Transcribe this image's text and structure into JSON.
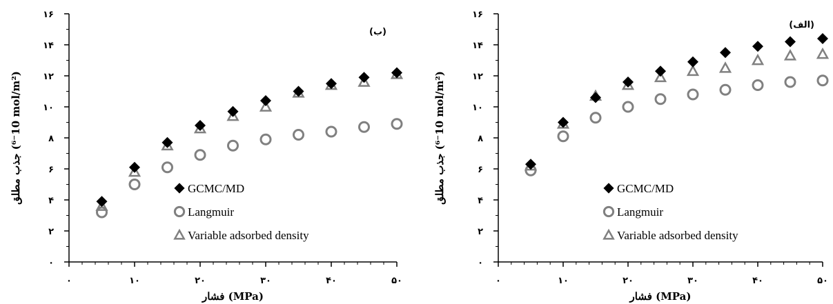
{
  "chart_data": [
    {
      "type": "scatter",
      "panel_label": "(ب)",
      "xlabel": "فشار (MPa)",
      "ylabel": "جذب مطلق (10⁻⁶ mol/m²)",
      "xlim": [
        0,
        50
      ],
      "ylim": [
        0,
        16
      ],
      "x_ticks": [
        0,
        10,
        20,
        30,
        40,
        50
      ],
      "x_tick_labels": [
        "۰",
        "۱۰",
        "۲۰",
        "۳۰",
        "۴۰",
        "۵۰"
      ],
      "y_ticks": [
        0,
        2,
        4,
        6,
        8,
        10,
        12,
        14,
        16
      ],
      "y_tick_labels": [
        "۰",
        "۲",
        "۴",
        "۶",
        "۸",
        "۱۰",
        "۱۲",
        "۱۴",
        "۱۶"
      ],
      "legend_position": "bottom-right",
      "x": [
        5,
        10,
        15,
        20,
        25,
        30,
        35,
        40,
        45,
        50
      ],
      "series": [
        {
          "name": "GCMC/MD",
          "marker": "diamond",
          "color": "#000000",
          "values": [
            3.9,
            6.1,
            7.7,
            8.8,
            9.7,
            10.4,
            11.0,
            11.5,
            11.9,
            12.2
          ]
        },
        {
          "name": "Langmuir",
          "marker": "circle",
          "color": "#808080",
          "values": [
            3.2,
            5.0,
            6.1,
            6.9,
            7.5,
            7.9,
            8.2,
            8.4,
            8.7,
            8.9
          ]
        },
        {
          "name": "Variable adsorbed density",
          "marker": "triangle",
          "color": "#808080",
          "values": [
            3.6,
            5.8,
            7.5,
            8.6,
            9.4,
            10.0,
            10.9,
            11.4,
            11.6,
            12.1
          ]
        }
      ]
    },
    {
      "type": "scatter",
      "panel_label": "(الف)",
      "xlabel": "فشار (MPa)",
      "ylabel": "جذب مطلق (10⁻⁶ mol/m²)",
      "xlim": [
        0,
        50
      ],
      "ylim": [
        0,
        16
      ],
      "x_ticks": [
        0,
        10,
        20,
        30,
        40,
        50
      ],
      "x_tick_labels": [
        "۰",
        "۱۰",
        "۲۰",
        "۳۰",
        "۴۰",
        "۵۰"
      ],
      "y_ticks": [
        0,
        2,
        4,
        6,
        8,
        10,
        12,
        14,
        16
      ],
      "y_tick_labels": [
        "۰",
        "۲",
        "۴",
        "۶",
        "۸",
        "۱۰",
        "۱۲",
        "۱۴",
        "۱۶"
      ],
      "legend_position": "bottom-right",
      "x": [
        5,
        10,
        15,
        20,
        25,
        30,
        35,
        40,
        45,
        50
      ],
      "series": [
        {
          "name": "GCMC/MD",
          "marker": "diamond",
          "color": "#000000",
          "values": [
            6.3,
            9.0,
            10.6,
            11.6,
            12.3,
            12.9,
            13.5,
            13.9,
            14.2,
            14.4
          ]
        },
        {
          "name": "Langmuir",
          "marker": "circle",
          "color": "#808080",
          "values": [
            5.9,
            8.1,
            9.3,
            10.0,
            10.5,
            10.8,
            11.1,
            11.4,
            11.6,
            11.7
          ]
        },
        {
          "name": "Variable adsorbed density",
          "marker": "triangle",
          "color": "#808080",
          "values": [
            6.2,
            8.9,
            10.7,
            11.4,
            11.9,
            12.3,
            12.5,
            13.0,
            13.3,
            13.4
          ]
        }
      ]
    }
  ]
}
